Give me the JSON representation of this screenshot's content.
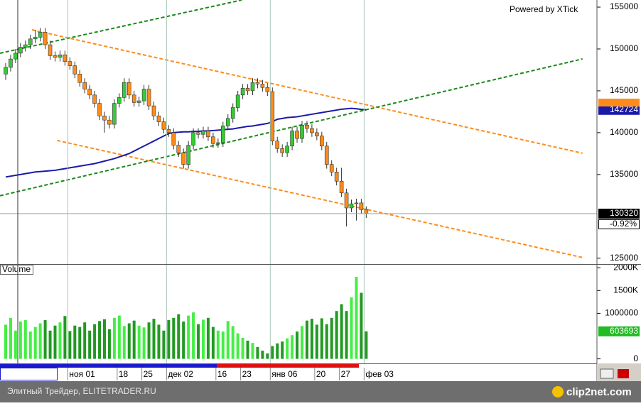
{
  "chart_data": [
    {
      "type": "candlestick",
      "title": "Powered by XTick",
      "ylim": [
        124300,
        155850
      ],
      "yticks": [
        125000,
        135000,
        140000,
        145000,
        150000,
        155000
      ],
      "up_color": "#33cc33",
      "down_color": "#ff8c1a",
      "open": [
        147000,
        147800,
        148800,
        149500,
        150200,
        150500,
        151200,
        151400,
        152000,
        150500,
        149200,
        149000,
        149300,
        148500,
        148000,
        147000,
        146000,
        145200,
        144500,
        143500,
        142000,
        141500,
        141000,
        143500,
        144200,
        146000,
        144500,
        143600,
        143800,
        145200,
        143200,
        142000,
        141300,
        140400,
        140000,
        138500,
        137600,
        136200,
        138500,
        140000,
        139800,
        140200,
        139500,
        138700,
        138800,
        140800,
        141700,
        143000,
        144500,
        145300,
        145000,
        146000,
        145800,
        145400,
        144900,
        139000,
        138100,
        137600,
        138400,
        140200,
        139300,
        140900,
        140500,
        140000,
        139600,
        138400,
        136200,
        135300,
        134200,
        132800,
        131000,
        131500,
        131600,
        130800
      ],
      "high": [
        148300,
        149300,
        150000,
        150700,
        151000,
        151700,
        152300,
        152500,
        152500,
        151000,
        149700,
        149800,
        149800,
        149000,
        148500,
        147500,
        146500,
        145700,
        145000,
        144000,
        142500,
        142000,
        144000,
        144700,
        146500,
        146500,
        145000,
        144300,
        145700,
        145700,
        143700,
        142500,
        141800,
        140900,
        140500,
        139000,
        138100,
        139000,
        140500,
        140500,
        140700,
        140700,
        140000,
        139300,
        141300,
        142200,
        143500,
        145000,
        145800,
        145800,
        146500,
        146500,
        146300,
        145900,
        145400,
        139500,
        138600,
        138900,
        140700,
        140700,
        141400,
        141400,
        141000,
        140500,
        140100,
        138900,
        136700,
        135800,
        135800,
        133300,
        132000,
        132100,
        132100,
        131200
      ],
      "low": [
        146300,
        147300,
        148300,
        149000,
        149700,
        150000,
        150700,
        150900,
        150000,
        148700,
        148500,
        148500,
        148000,
        147500,
        146500,
        145500,
        144700,
        144000,
        143000,
        141500,
        140000,
        140500,
        140500,
        143000,
        143700,
        144000,
        143100,
        143100,
        143300,
        142700,
        141500,
        140800,
        139900,
        139500,
        138000,
        137100,
        135700,
        135700,
        138000,
        139300,
        139300,
        139000,
        138200,
        138200,
        138300,
        140300,
        141200,
        142500,
        144000,
        144500,
        144500,
        145300,
        144900,
        144400,
        138500,
        137600,
        137100,
        137100,
        137900,
        138800,
        138800,
        140000,
        139500,
        139100,
        137900,
        135700,
        134800,
        133700,
        132300,
        128800,
        130500,
        129500,
        130300,
        129800
      ],
      "close": [
        147800,
        148800,
        149500,
        150200,
        150500,
        151200,
        151400,
        152000,
        150500,
        149200,
        149000,
        149300,
        148500,
        148000,
        147000,
        146000,
        145200,
        144500,
        143500,
        142000,
        141500,
        141000,
        143500,
        144200,
        146000,
        144500,
        143600,
        143800,
        145200,
        143200,
        142000,
        141300,
        140400,
        140000,
        138500,
        137600,
        136200,
        138500,
        140000,
        139800,
        140200,
        139500,
        138700,
        138800,
        140800,
        141700,
        143000,
        144500,
        145300,
        145000,
        146000,
        145800,
        145400,
        144900,
        139000,
        138100,
        137600,
        138400,
        140200,
        139300,
        140900,
        140500,
        140000,
        139600,
        138400,
        136200,
        135300,
        134200,
        132800,
        131000,
        131500,
        131600,
        130800,
        130320
      ],
      "ma": {
        "color": "#1a1aa8",
        "values": [
          134700,
          134800,
          134900,
          135000,
          135100,
          135200,
          135300,
          135350,
          135400,
          135450,
          135500,
          135600,
          135700,
          135800,
          135900,
          136000,
          136100,
          136200,
          136300,
          136450,
          136600,
          136750,
          136900,
          137100,
          137300,
          137500,
          137800,
          138100,
          138400,
          138700,
          139000,
          139300,
          139600,
          139900,
          140000,
          140050,
          140100,
          140100,
          140150,
          140150,
          140200,
          140200,
          140250,
          140300,
          140350,
          140400,
          140450,
          140550,
          140650,
          140750,
          140800,
          140900,
          141000,
          141100,
          141300,
          141600,
          141700,
          141800,
          141850,
          141900,
          142000,
          142100,
          142200,
          142300,
          142400,
          142500,
          142600,
          142700,
          142800,
          142850,
          142900,
          142850,
          142780,
          142724
        ]
      },
      "trendlines": [
        {
          "color": "#ff8c1a",
          "x": [
            5.3,
            116.8
          ],
          "y": [
            152290,
            137540
          ]
        },
        {
          "color": "#ff8c1a",
          "x": [
            10.4,
            116.8
          ],
          "y": [
            139070,
            125080
          ]
        },
        {
          "color": "#1a8a1a",
          "x": [
            -1.15,
            47.8
          ],
          "y": [
            149490,
            155850
          ]
        },
        {
          "color": "#1a8a1a",
          "x": [
            -1.15,
            116.8
          ],
          "y": [
            132460,
            148810
          ]
        }
      ],
      "change": {
        "value": -0.92,
        "label": "-0.92%"
      }
    },
    {
      "type": "bar",
      "title": "Volume",
      "ylim": [
        -100000,
        2050000
      ],
      "yticks": [
        0,
        {
          "value": 1000000,
          "label": "1000000"
        },
        {
          "value": 1500000,
          "label": "1500K"
        },
        {
          "value": 2000000,
          "label": "2000K"
        }
      ],
      "up_color": "#44ee44",
      "down_color": "#229922",
      "categories": [
        null,
        null,
        null,
        null,
        null,
        null,
        null,
        null,
        null,
        null,
        null,
        null,
        null,
        "ноя 01",
        null,
        null,
        null,
        null,
        null,
        null,
        null,
        null,
        null,
        "18",
        null,
        null,
        null,
        null,
        "25",
        null,
        null,
        null,
        null,
        "дек 02",
        null,
        null,
        null,
        null,
        null,
        null,
        null,
        null,
        null,
        "16",
        null,
        null,
        null,
        null,
        "23",
        null,
        null,
        null,
        null,
        null,
        "янв 06",
        null,
        null,
        null,
        null,
        null,
        null,
        null,
        null,
        "20",
        null,
        null,
        null,
        null,
        "27",
        null,
        null,
        null,
        null,
        "фев 03"
      ],
      "values": [
        750000,
        900000,
        620000,
        820000,
        850000,
        600000,
        700000,
        780000,
        850000,
        620000,
        730000,
        800000,
        940000,
        610000,
        730000,
        700000,
        800000,
        620000,
        760000,
        830000,
        870000,
        650000,
        900000,
        950000,
        720000,
        780000,
        840000,
        730000,
        690000,
        800000,
        880000,
        750000,
        620000,
        850000,
        900000,
        980000,
        820000,
        950000,
        1020000,
        760000,
        860000,
        900000,
        700000,
        620000,
        600000,
        830000,
        720000,
        560000,
        460000,
        400000,
        350000,
        260000,
        180000,
        120000,
        280000,
        340000,
        380000,
        450000,
        520000,
        600000,
        720000,
        840000,
        880000,
        750000,
        890000,
        760000,
        900000,
        1050000,
        1200000,
        1050000,
        1350000,
        1800000,
        1450000,
        603693
      ]
    }
  ],
  "footer": {
    "source": "Элитный Трейдер, ELITETRADER.RU",
    "logo": "clip2net.com"
  }
}
